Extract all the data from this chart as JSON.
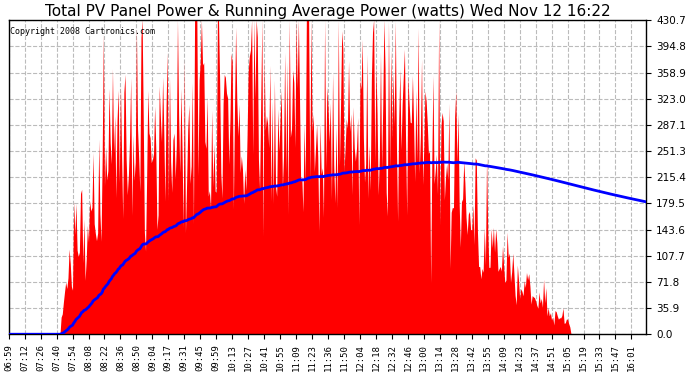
{
  "title": "Total PV Panel Power & Running Average Power (watts) Wed Nov 12 16:22",
  "copyright": "Copyright 2008 Cartronics.com",
  "background_color": "#ffffff",
  "plot_bg_color": "#ffffff",
  "bar_color": "#ff0000",
  "line_color": "#0000ff",
  "ylim": [
    0.0,
    430.7
  ],
  "yticks": [
    0.0,
    35.9,
    71.8,
    107.7,
    143.6,
    179.5,
    215.4,
    251.3,
    287.1,
    323.0,
    358.9,
    394.8,
    430.7
  ],
  "xlabel_fontsize": 6.5,
  "ylabel_fontsize": 7.5,
  "title_fontsize": 11,
  "grid_color": "#bbbbbb",
  "grid_style": "--",
  "time_start": "06:59",
  "time_end": "16:14",
  "n_points": 560,
  "tick_every_minutes": 14
}
